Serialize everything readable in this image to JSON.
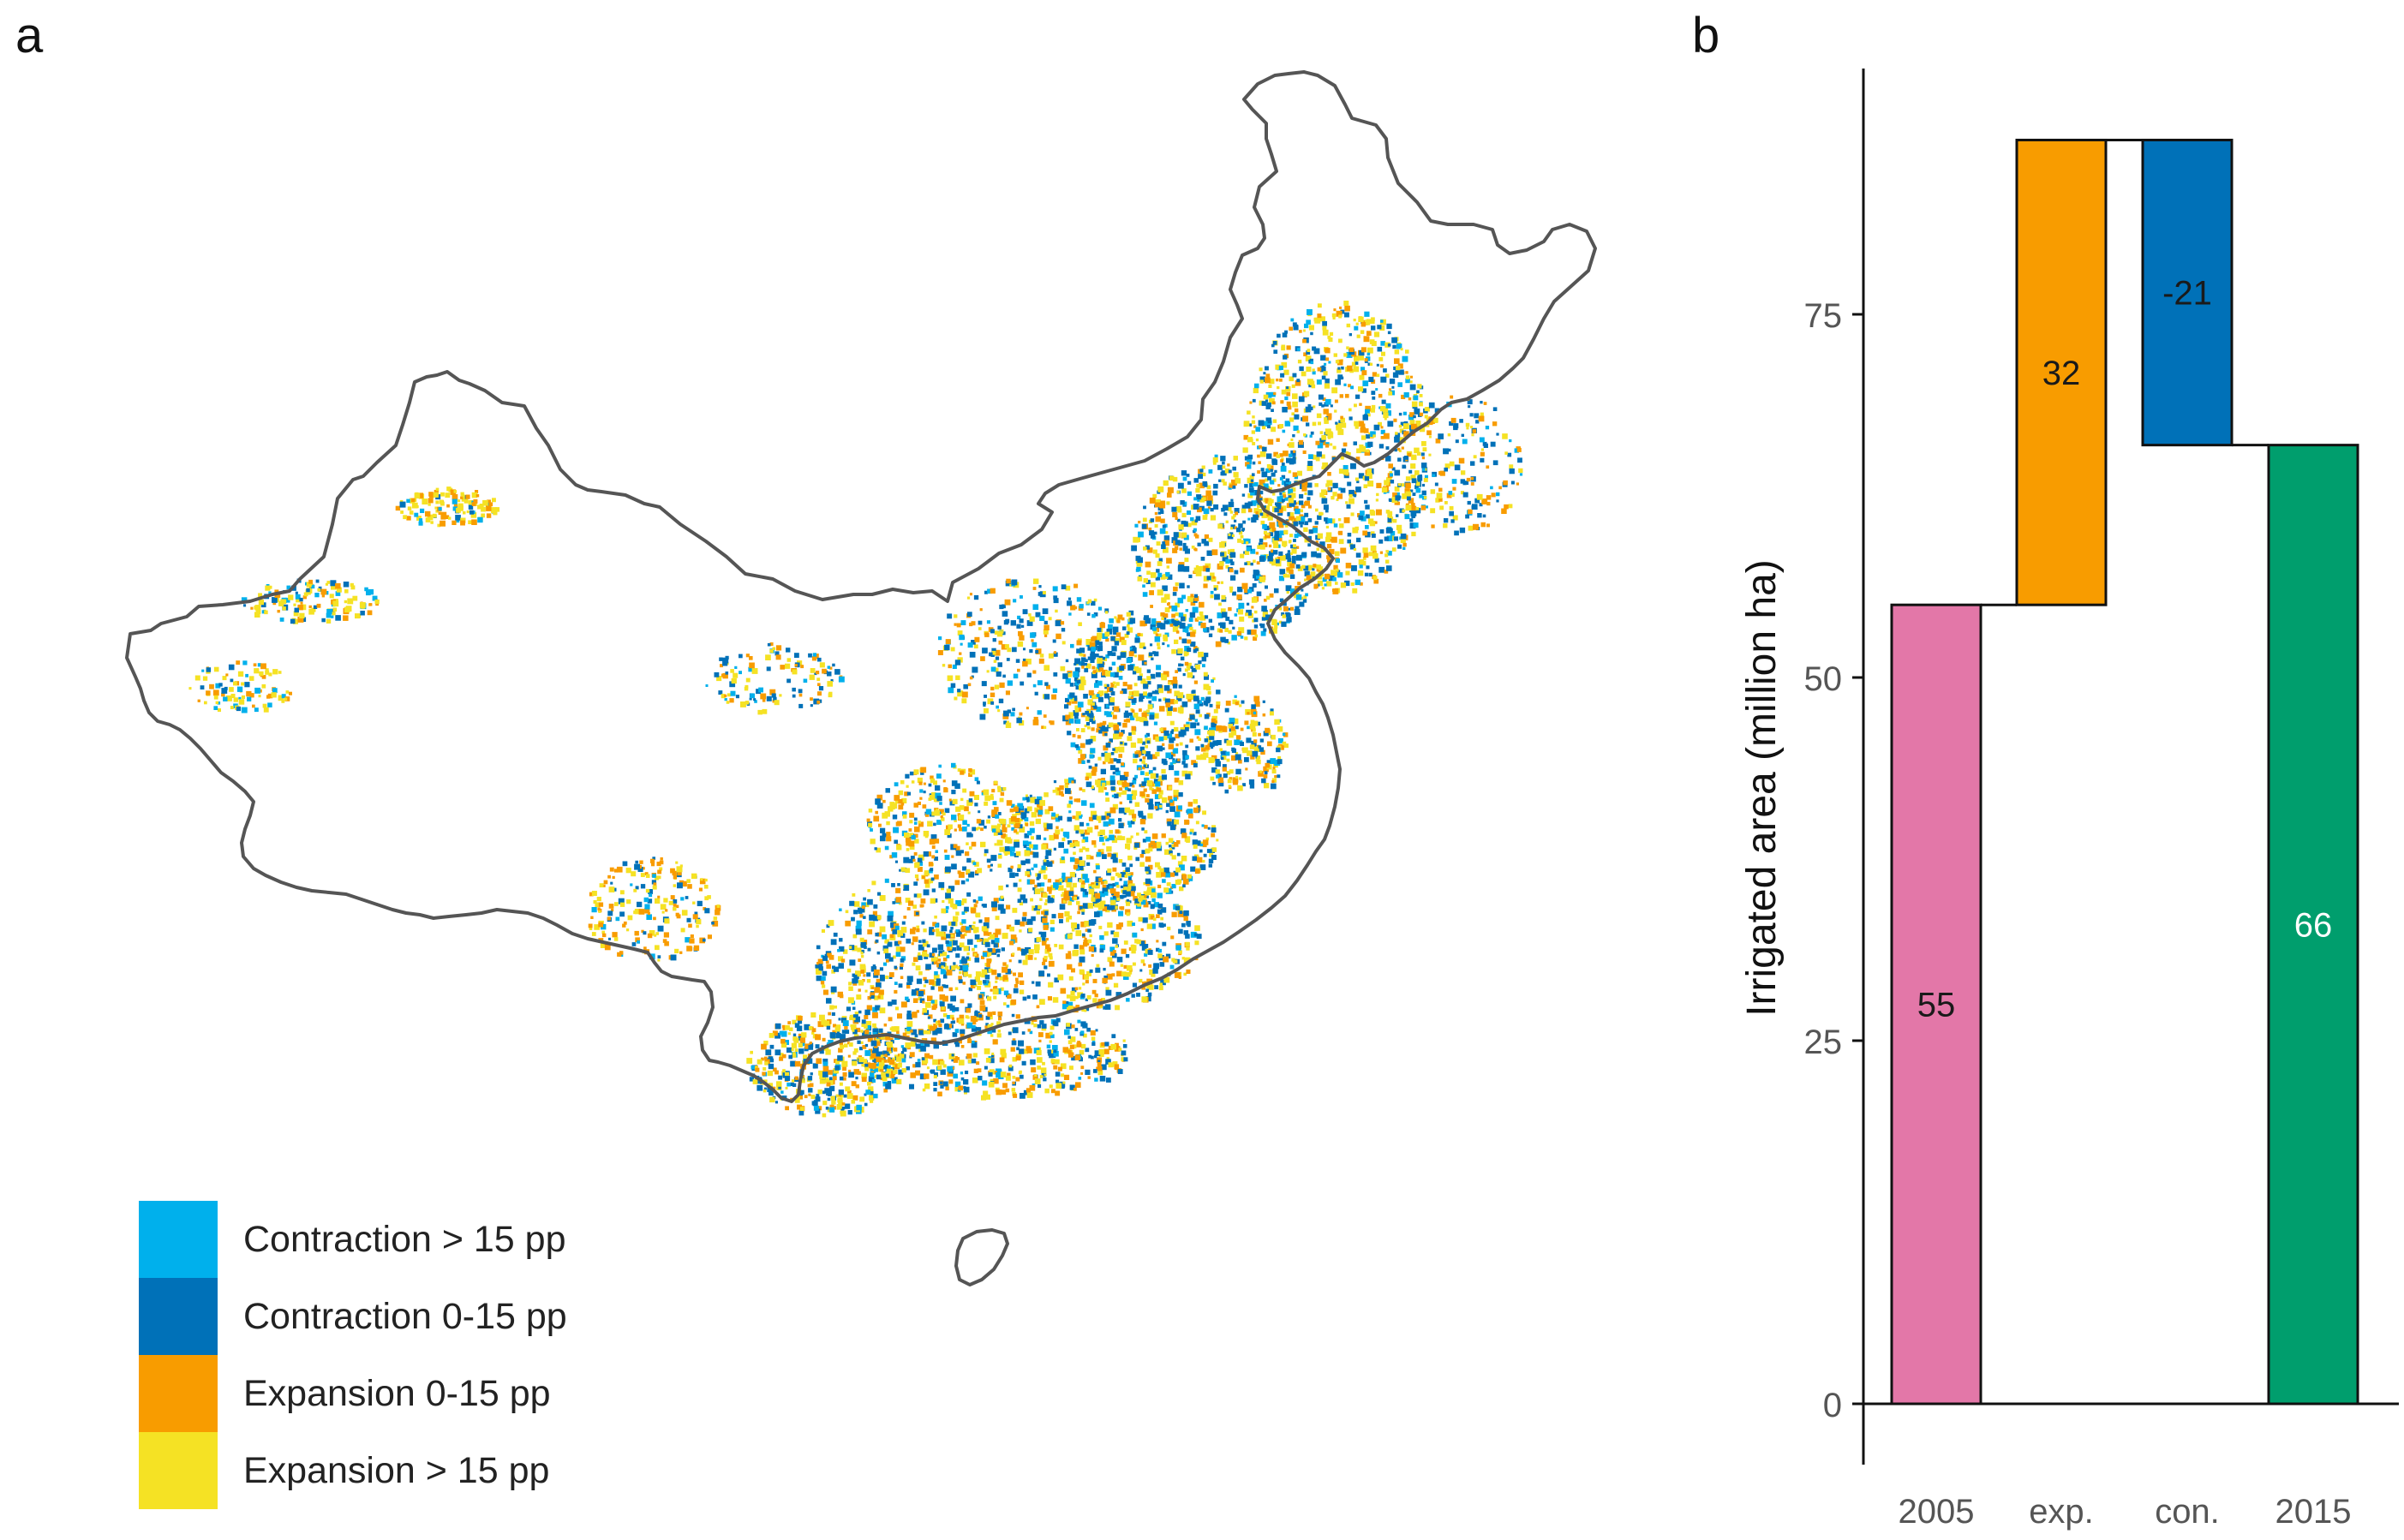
{
  "panels": {
    "a": "a",
    "b": "b"
  },
  "legend": {
    "items": [
      {
        "label": "Contraction > 15 pp",
        "color": "#00b0ec"
      },
      {
        "label": "Contraction 0-15 pp",
        "color": "#0071b8"
      },
      {
        "label": "Expansion 0-15 pp",
        "color": "#f89c00"
      },
      {
        "label": "Expansion > 15 pp",
        "color": "#f5e224"
      }
    ]
  },
  "map": {
    "outline_color": "#555555"
  },
  "chart_data": {
    "type": "bar",
    "subtype": "waterfall",
    "title": "",
    "xlabel": "",
    "ylabel": "Irrigated area (million ha)",
    "ylim": [
      0,
      90
    ],
    "yticks": [
      0,
      25,
      50,
      75
    ],
    "categories": [
      "2005",
      "exp.",
      "con.",
      "2015"
    ],
    "bars": [
      {
        "category": "2005",
        "start": 0,
        "end": 55,
        "label": "55",
        "color": "#e377a8",
        "label_color": "#1a1a1a"
      },
      {
        "category": "exp.",
        "start": 55,
        "end": 87,
        "label": "32",
        "color": "#f89c00",
        "label_color": "#1a1a1a"
      },
      {
        "category": "con.",
        "start": 87,
        "end": 66,
        "label": "-21",
        "color": "#0071b8",
        "label_color": "#1a1a1a"
      },
      {
        "category": "2015",
        "start": 0,
        "end": 66,
        "label": "66",
        "color": "#009e6d",
        "label_color": "#ffffff"
      }
    ]
  }
}
